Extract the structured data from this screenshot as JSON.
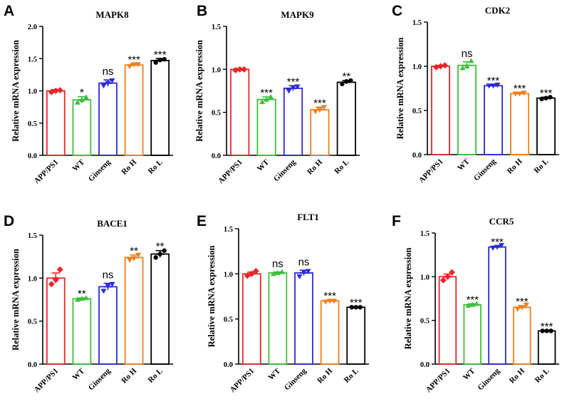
{
  "figure": {
    "categories": [
      "APP/PS1",
      "WT",
      "Ginseng",
      "Ro H",
      "Ro L"
    ],
    "colors": [
      "#e8262b",
      "#3fbf3f",
      "#2a2ad8",
      "#f07f1e",
      "#000000"
    ]
  },
  "chart_data": [
    {
      "type": "bar",
      "panel": "A",
      "title": "MAPK8",
      "ylabel": "Relative mRNA expression",
      "xlabel": "",
      "categories": [
        "APP/PS1",
        "WT",
        "Ginseng",
        "Ro H",
        "Ro L"
      ],
      "values": [
        1.0,
        0.86,
        1.12,
        1.4,
        1.47
      ],
      "errors": [
        0.02,
        0.05,
        0.05,
        0.02,
        0.03
      ],
      "points": [
        [
          0.98,
          1.0,
          1.01
        ],
        [
          0.82,
          0.86,
          0.9
        ],
        [
          1.08,
          1.12,
          1.16
        ],
        [
          1.38,
          1.41,
          1.41
        ],
        [
          1.44,
          1.48,
          1.49
        ]
      ],
      "significance": [
        "",
        "*",
        "ns",
        "***",
        "***"
      ],
      "ylim": [
        0,
        2.0
      ],
      "yticks": [
        "0.0",
        "0.5",
        "1.0",
        "1.5",
        "2.0"
      ]
    },
    {
      "type": "bar",
      "panel": "B",
      "title": "MAPK9",
      "ylabel": "Relative mRNA expression",
      "xlabel": "",
      "categories": [
        "APP/PS1",
        "WT",
        "Ginseng",
        "Ro H",
        "Ro L"
      ],
      "values": [
        1.0,
        0.65,
        0.78,
        0.53,
        0.85
      ],
      "errors": [
        0.01,
        0.03,
        0.03,
        0.03,
        0.02
      ],
      "points": [
        [
          0.99,
          1.0,
          1.0
        ],
        [
          0.62,
          0.65,
          0.68
        ],
        [
          0.75,
          0.79,
          0.8
        ],
        [
          0.51,
          0.53,
          0.56
        ],
        [
          0.83,
          0.86,
          0.87
        ]
      ],
      "significance": [
        "",
        "***",
        "***",
        "***",
        "**"
      ],
      "ylim": [
        0,
        1.5
      ],
      "yticks": [
        "0.0",
        "0.5",
        "1.0",
        "1.5"
      ]
    },
    {
      "type": "bar",
      "panel": "C",
      "title": "CDK2",
      "ylabel": "Relative mRNA expression",
      "xlabel": "",
      "categories": [
        "APP/PS1",
        "WT",
        "Ginseng",
        "Ro H",
        "Ro L"
      ],
      "values": [
        1.0,
        1.01,
        0.78,
        0.69,
        0.64
      ],
      "errors": [
        0.01,
        0.04,
        0.01,
        0.01,
        0.01
      ],
      "points": [
        [
          0.99,
          1.0,
          1.01
        ],
        [
          0.98,
          1.0,
          1.06
        ],
        [
          0.78,
          0.78,
          0.79
        ],
        [
          0.69,
          0.69,
          0.7
        ],
        [
          0.63,
          0.64,
          0.65
        ]
      ],
      "significance": [
        "",
        "ns",
        "***",
        "***",
        "***"
      ],
      "ylim": [
        0,
        1.5
      ],
      "yticks": [
        "0.0",
        "0.5",
        "1.0",
        "1.5"
      ]
    },
    {
      "type": "bar",
      "panel": "D",
      "title": "BACE1",
      "ylabel": "Relative mRNA expression",
      "xlabel": "",
      "categories": [
        "APP/PS1",
        "WT",
        "Ginseng",
        "Ro H",
        "Ro L"
      ],
      "values": [
        1.0,
        0.76,
        0.9,
        1.24,
        1.28
      ],
      "errors": [
        0.06,
        0.01,
        0.04,
        0.03,
        0.04
      ],
      "points": [
        [
          0.93,
          0.98,
          1.1
        ],
        [
          0.75,
          0.76,
          0.77
        ],
        [
          0.85,
          0.91,
          0.93
        ],
        [
          1.21,
          1.23,
          1.27
        ],
        [
          1.24,
          1.28,
          1.32
        ]
      ],
      "significance": [
        "",
        "**",
        "ns",
        "**",
        "**"
      ],
      "ylim": [
        0,
        1.5
      ],
      "yticks": [
        "0.0",
        "0.5",
        "1.0",
        "1.5"
      ]
    },
    {
      "type": "bar",
      "panel": "E",
      "title": "FLT1",
      "ylabel": "Relative mRNA expression",
      "xlabel": "",
      "categories": [
        "APP/PS1",
        "WT",
        "Ginseng",
        "Ro H",
        "Ro L"
      ],
      "values": [
        1.0,
        1.01,
        1.01,
        0.7,
        0.63
      ],
      "errors": [
        0.02,
        0.01,
        0.03,
        0.01,
        0.005
      ],
      "points": [
        [
          0.98,
          1.0,
          1.03
        ],
        [
          1.0,
          1.01,
          1.02
        ],
        [
          0.97,
          1.02,
          1.03
        ],
        [
          0.69,
          0.7,
          0.7
        ],
        [
          0.63,
          0.63,
          0.63
        ]
      ],
      "significance": [
        "",
        "ns",
        "ns",
        "***",
        "***"
      ],
      "ylim": [
        0,
        1.5
      ],
      "yticks": [
        "0.0",
        "0.5",
        "1.0",
        "1.5"
      ]
    },
    {
      "type": "bar",
      "panel": "F",
      "title": "CCR5",
      "ylabel": "Relative mRNA expression",
      "xlabel": "",
      "categories": [
        "APP/PS1",
        "WT",
        "Ginseng",
        "Ro H",
        "Ro L"
      ],
      "values": [
        1.0,
        0.68,
        1.34,
        0.65,
        0.38
      ],
      "errors": [
        0.03,
        0.01,
        0.01,
        0.02,
        0.005
      ],
      "points": [
        [
          0.96,
          1.0,
          1.05
        ],
        [
          0.67,
          0.68,
          0.69
        ],
        [
          1.33,
          1.34,
          1.36
        ],
        [
          0.63,
          0.65,
          0.68
        ],
        [
          0.38,
          0.38,
          0.38
        ]
      ],
      "significance": [
        "",
        "***",
        "***",
        "***",
        "***"
      ],
      "ylim": [
        0,
        1.5
      ],
      "yticks": [
        "0.0",
        "0.5",
        "1.0",
        "1.5"
      ]
    }
  ]
}
